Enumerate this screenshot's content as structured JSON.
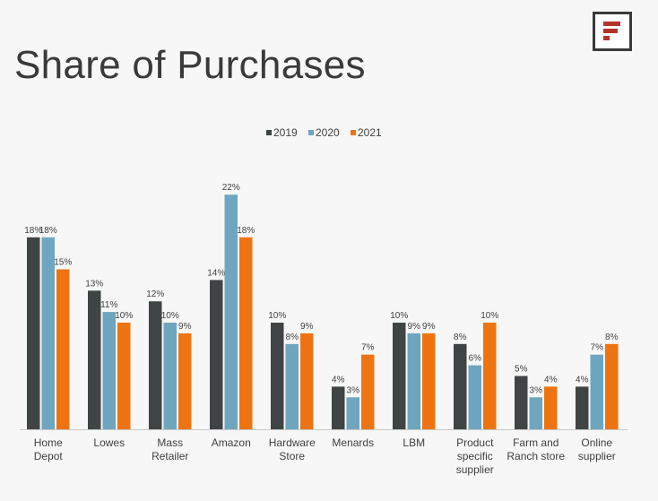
{
  "page": {
    "title": "Share of Purchases",
    "logo_icon": "brand-logo-icon"
  },
  "colors": {
    "series_2019": "#404444",
    "series_2020": "#6ea6bf",
    "series_2021": "#ee7411",
    "logo_mark": "#b5322b"
  },
  "chart_data": {
    "type": "bar",
    "title": "",
    "xlabel": "",
    "ylabel": "",
    "ylim": [
      0,
      25
    ],
    "grid": false,
    "legend": "top-center",
    "categories": [
      [
        "Home",
        "Depot"
      ],
      [
        "Lowes"
      ],
      [
        "Mass",
        "Retailer"
      ],
      [
        "Amazon"
      ],
      [
        "Hardware",
        "Store"
      ],
      [
        "Menards"
      ],
      [
        "LBM"
      ],
      [
        "Product",
        "specific",
        "supplier"
      ],
      [
        "Farm and",
        "Ranch store"
      ],
      [
        "Online",
        "supplier"
      ]
    ],
    "series": [
      {
        "name": "2019",
        "values": [
          18,
          13,
          12,
          14,
          10,
          4,
          10,
          8,
          5,
          4
        ],
        "labels": [
          "18%",
          "13%",
          "12%",
          "14%",
          "10%",
          "4%",
          "10%",
          "8%",
          "5%",
          "4%"
        ]
      },
      {
        "name": "2020",
        "values": [
          18,
          11,
          10,
          22,
          8,
          3,
          9,
          6,
          3,
          7
        ],
        "labels": [
          "18%",
          "11%",
          "10%",
          "22%",
          "8%",
          "3%",
          "9%",
          "6%",
          "3%",
          "7%"
        ]
      },
      {
        "name": "2021",
        "values": [
          15,
          10,
          9,
          18,
          9,
          7,
          9,
          10,
          4,
          8
        ],
        "labels": [
          "15%",
          "10%",
          "9%",
          "18%",
          "9%",
          "7%",
          "9%",
          "10%",
          "4%",
          "8%"
        ]
      }
    ]
  }
}
